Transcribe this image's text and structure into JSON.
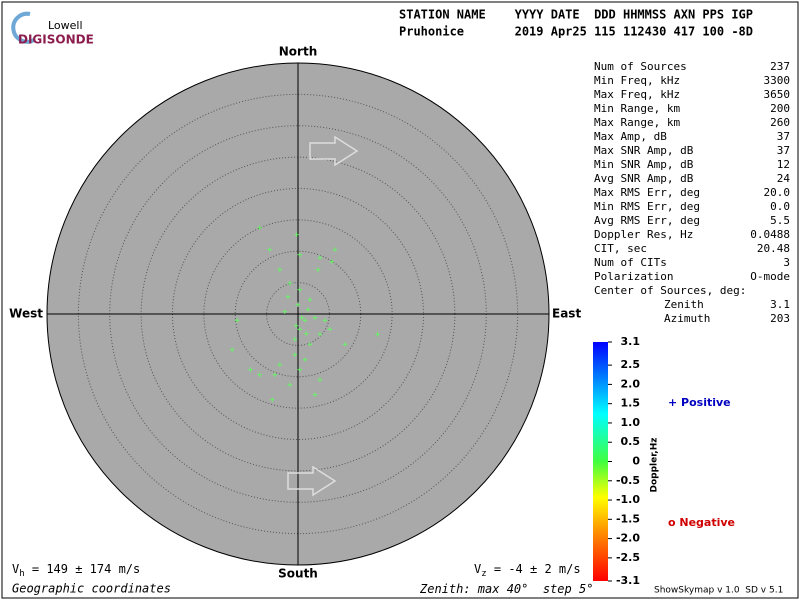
{
  "logo": {
    "top": "Lowell",
    "bottom": "DIGISONDE"
  },
  "header": {
    "line1": "STATION NAME    YYYY DATE  DDD HHMMSS AXN PPS IGP",
    "line2": "Pruhonice       2019 Apr25 115 112430 417 100 -8D"
  },
  "directions": {
    "north": "North",
    "south": "South",
    "east": "East",
    "west": "West"
  },
  "stats": [
    [
      "Num of Sources",
      "237"
    ],
    [
      "Min Freq, kHz",
      "3300"
    ],
    [
      "Max Freq, kHz",
      "3650"
    ],
    [
      "Min Range, km",
      "200"
    ],
    [
      "Max Range, km",
      "260"
    ],
    [
      "Max Amp, dB",
      "37"
    ],
    [
      "Max SNR Amp, dB",
      "37"
    ],
    [
      "Min SNR Amp, dB",
      "12"
    ],
    [
      "Avg SNR Amp, dB",
      "24"
    ],
    [
      "Max RMS Err, deg",
      "20.0"
    ],
    [
      "Min RMS Err, deg",
      "0.0"
    ],
    [
      "Avg RMS Err, deg",
      "5.5"
    ],
    [
      "Doppler Res, Hz",
      "0.0488"
    ],
    [
      "CIT, sec",
      "20.48"
    ],
    [
      "Num of CITs",
      "3"
    ],
    [
      "Polarization",
      "O-mode"
    ]
  ],
  "center": {
    "title": "Center of Sources, deg:",
    "zenith_label": "Zenith",
    "zenith": "3.1",
    "azimuth_label": "Azimuth",
    "azimuth": "203"
  },
  "colorbar": {
    "title": "Doppler,Hz",
    "lim": [
      -3.1,
      3.1
    ],
    "ticks": [
      3.1,
      2.5,
      {
        "value": 2,
        "label": "2.0"
      },
      1.5,
      {
        "value": 1,
        "label": "1.0"
      },
      0.5,
      0,
      -0.5,
      {
        "value": -1,
        "label": "-1.0"
      },
      -1.5,
      {
        "value": -2,
        "label": "-2.0"
      },
      -2.5,
      -3.1
    ]
  },
  "legend": {
    "positive": "+ Positive",
    "negative": "o Negative"
  },
  "vh": {
    "symbol": "V",
    "sub": "h",
    "text": " = 149 ± 174 m/s"
  },
  "vz": {
    "symbol": "V",
    "sub": "z",
    "text": " = -4 ± 2 m/s"
  },
  "coords": "Geographic coordinates",
  "zenith_note": {
    "prefix": "Zenith: max ",
    "max": 40,
    "mid": "°  step ",
    "step": 5,
    "suffix": "°"
  },
  "version": "ShowSkymap v 1.0  SD v 5.1",
  "sources": {
    "east": [
      -6.1,
      -0.2,
      -4.5,
      -2.9,
      0.3,
      3.5,
      5.9,
      -1.3,
      0.3,
      -1.6,
      1.9,
      -2.1,
      1.1,
      0.3,
      -0.5,
      1.9,
      3.5,
      5.1,
      7.5,
      12.7,
      -9.7,
      -10.5,
      -7.6,
      -3.7,
      0.3,
      -6.1,
      -4.1,
      -1.3,
      2.7,
      3.5,
      1.1,
      -0.5,
      2.7,
      1.6,
      4.3,
      -2.9,
      3.2,
      5.4,
      0.6,
      -0.3,
      1.3,
      0
    ],
    "north": [
      13.7,
      12.6,
      10.2,
      7.0,
      9.4,
      8.9,
      10.2,
      4.9,
      3.8,
      2.7,
      2.2,
      0.3,
      -1.0,
      -2.5,
      -4.1,
      -4.9,
      -3.3,
      -2.5,
      -4.9,
      -3.3,
      -1.0,
      -5.7,
      -8.9,
      -9.7,
      -8.9,
      -9.7,
      -13.7,
      -11.3,
      -12.9,
      -10.5,
      -7.3,
      -6.5,
      -0.6,
      0.6,
      -1.0,
      -8.1,
      7.0,
      8.3,
      -0.6,
      -1.9,
      -3.2,
      1.4
    ]
  }
}
